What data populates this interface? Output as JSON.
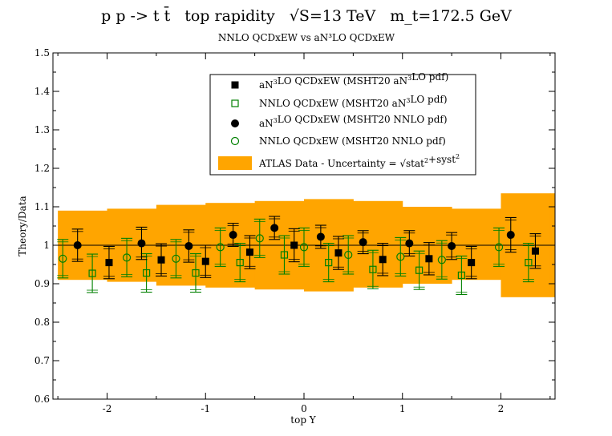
{
  "chart_data": {
    "type": "scatter",
    "title": {
      "process": "p p -> t t̄",
      "observable": "top rapidity",
      "energy": "√S=13 TeV",
      "mass": "m_t=172.5 GeV"
    },
    "subtitle": "NNLO QCDxEW vs aN³LO QCDxEW",
    "xlabel": "top Y",
    "ylabel": "Theory/Data",
    "xlim": [
      -2.55,
      2.55
    ],
    "ylim": [
      0.6,
      1.5
    ],
    "xticks": [
      -2,
      -1,
      0,
      1,
      2
    ],
    "xtick_labels": [
      "-2",
      "-1",
      "0",
      "1",
      "2"
    ],
    "yticks": [
      0.6,
      0.7,
      0.8,
      0.9,
      1.0,
      1.1,
      1.2,
      1.3,
      1.4,
      1.5
    ],
    "ytick_labels": [
      "0.6",
      "0.7",
      "0.8",
      "0.9",
      "1",
      "1.1",
      "1.2",
      "1.3",
      "1.4",
      "1.5"
    ],
    "reference_line": 1.0,
    "bins": [
      {
        "lo": -2.5,
        "hi": -2.0,
        "x_black_circle": -2.3,
        "x_black_square": -1.98,
        "x_green_circle": -2.45,
        "x_green_square": -2.15
      },
      {
        "lo": -2.0,
        "hi": -1.5,
        "x_black_circle": -1.65,
        "x_black_square": -1.45,
        "x_green_circle": -1.8,
        "x_green_square": -1.6
      },
      {
        "lo": -1.5,
        "hi": -1.0,
        "x_black_circle": -1.17,
        "x_black_square": -1.0,
        "x_green_circle": -1.3,
        "x_green_square": -1.1
      },
      {
        "lo": -1.0,
        "hi": -0.5,
        "x_black_circle": -0.72,
        "x_black_square": -0.55,
        "x_green_circle": -0.85,
        "x_green_square": -0.65
      },
      {
        "lo": -0.5,
        "hi": 0.0,
        "x_black_circle": -0.3,
        "x_black_square": -0.1,
        "x_green_circle": -0.45,
        "x_green_square": -0.2
      },
      {
        "lo": 0.0,
        "hi": 0.5,
        "x_black_circle": 0.17,
        "x_black_square": 0.35,
        "x_green_circle": 0.0,
        "x_green_square": 0.25
      },
      {
        "lo": 0.5,
        "hi": 1.0,
        "x_black_circle": 0.6,
        "x_black_square": 0.8,
        "x_green_circle": 0.45,
        "x_green_square": 0.7
      },
      {
        "lo": 1.0,
        "hi": 1.5,
        "x_black_circle": 1.07,
        "x_black_square": 1.27,
        "x_green_circle": 0.98,
        "x_green_square": 1.17
      },
      {
        "lo": 1.5,
        "hi": 2.0,
        "x_black_circle": 1.5,
        "x_black_square": 1.7,
        "x_green_circle": 1.4,
        "x_green_square": 1.6
      },
      {
        "lo": 2.0,
        "hi": 2.5,
        "x_black_circle": 2.1,
        "x_black_square": 2.35,
        "x_green_circle": 1.98,
        "x_green_square": 2.28
      }
    ],
    "band": {
      "name": "ATLAS Data  -  Uncertainty = √stat²+syst²",
      "color": "#ffa500",
      "lower": [
        0.91,
        0.905,
        0.895,
        0.89,
        0.885,
        0.88,
        0.89,
        0.9,
        0.91,
        0.865
      ],
      "upper": [
        1.09,
        1.095,
        1.105,
        1.11,
        1.115,
        1.12,
        1.115,
        1.1,
        1.095,
        1.135
      ]
    },
    "series": [
      {
        "name": "aN³LO QCDxEW (MSHT20 aN³LO pdf)",
        "marker": "filled-square",
        "color": "#000000",
        "xkey": "x_black_square",
        "values": [
          0.955,
          0.962,
          0.958,
          0.982,
          1.0,
          0.98,
          0.963,
          0.965,
          0.955,
          0.985
        ],
        "err": [
          0.042,
          0.042,
          0.042,
          0.043,
          0.043,
          0.043,
          0.042,
          0.042,
          0.042,
          0.045
        ]
      },
      {
        "name": "NNLO QCDxEW (MSHT20  aN³LO pdf)",
        "marker": "open-square",
        "color": "#008000",
        "xkey": "x_green_square",
        "values": [
          0.927,
          0.928,
          0.928,
          0.955,
          0.975,
          0.955,
          0.937,
          0.935,
          0.922,
          0.955
        ],
        "err": [
          0.05,
          0.05,
          0.05,
          0.05,
          0.05,
          0.05,
          0.05,
          0.05,
          0.05,
          0.05
        ]
      },
      {
        "name": "aN³LO QCDxEW (MSHT20 NNLO pdf)",
        "marker": "filled-circle",
        "color": "#000000",
        "xkey": "x_black_circle",
        "values": [
          1.0,
          1.005,
          0.998,
          1.027,
          1.045,
          1.022,
          1.008,
          1.005,
          0.998,
          1.027
        ],
        "err": [
          0.042,
          0.042,
          0.042,
          0.03,
          0.03,
          0.03,
          0.03,
          0.033,
          0.035,
          0.045
        ]
      },
      {
        "name": "NNLO QCDxEW (MSHT20 NNLO pdf)",
        "marker": "open-circle",
        "color": "#008000",
        "xkey": "x_green_circle",
        "values": [
          0.965,
          0.968,
          0.965,
          0.995,
          1.018,
          0.995,
          0.975,
          0.97,
          0.962,
          0.995
        ],
        "err": [
          0.05,
          0.05,
          0.05,
          0.05,
          0.05,
          0.05,
          0.05,
          0.05,
          0.05,
          0.05
        ]
      }
    ],
    "legend_position": "top-right"
  }
}
